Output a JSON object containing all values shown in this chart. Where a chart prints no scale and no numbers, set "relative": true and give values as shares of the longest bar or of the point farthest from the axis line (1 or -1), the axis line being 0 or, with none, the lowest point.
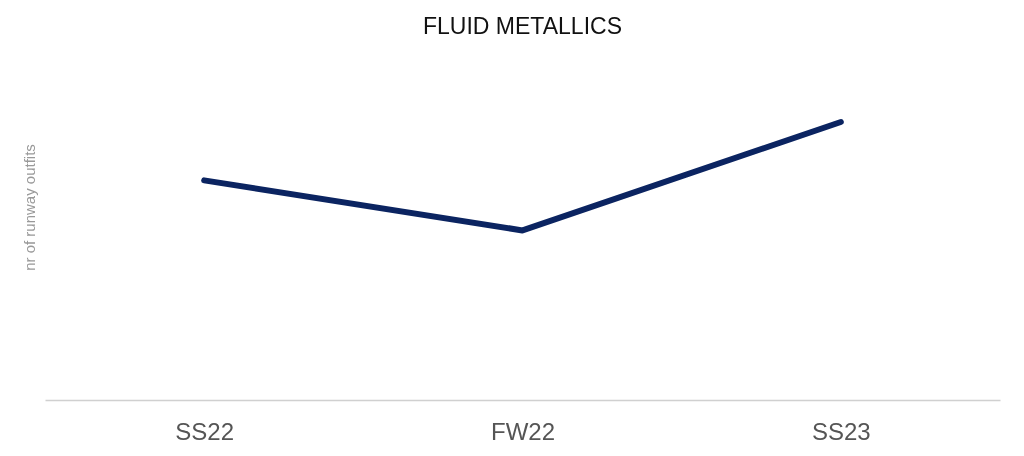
{
  "chart_data": {
    "type": "line",
    "title": "FLUID METALLICS",
    "ylabel": "nr of runway outfits",
    "categories": [
      "SS22",
      "FW22",
      "SS23"
    ],
    "series": [
      {
        "color": "#0b2461",
        "values": [
          0.79,
          0.61,
          1
        ]
      }
    ],
    "relative": true,
    "grid": false,
    "line_style": "solid"
  }
}
